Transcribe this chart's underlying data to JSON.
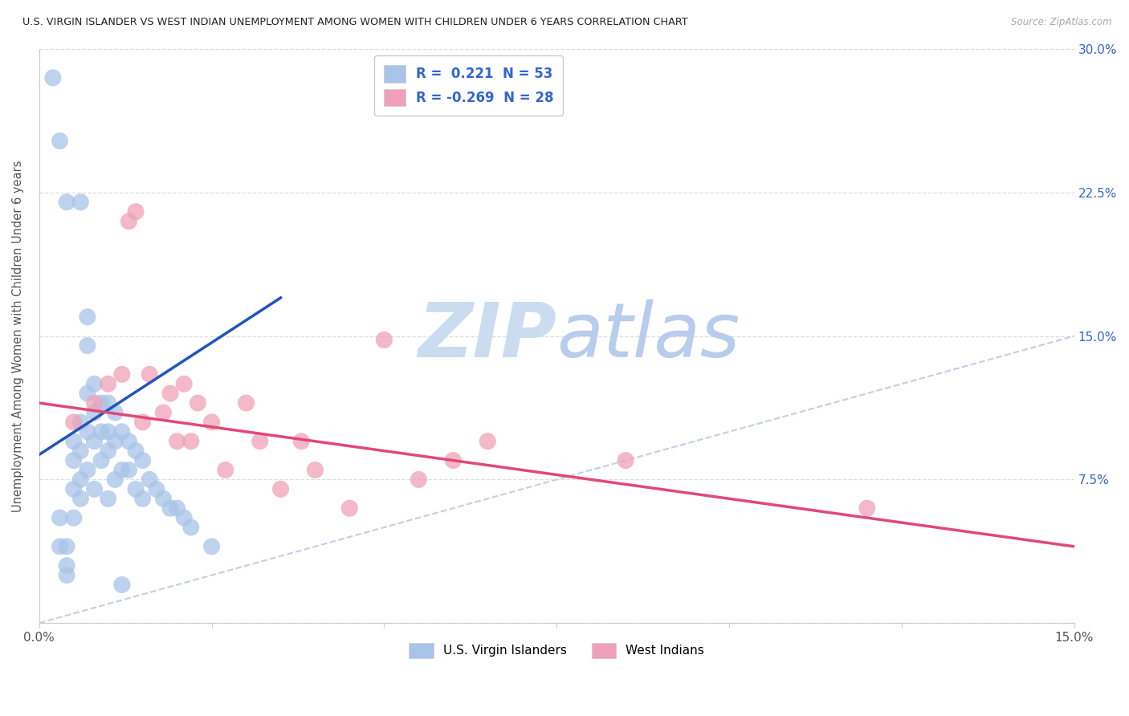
{
  "title": "U.S. VIRGIN ISLANDER VS WEST INDIAN UNEMPLOYMENT AMONG WOMEN WITH CHILDREN UNDER 6 YEARS CORRELATION CHART",
  "source": "Source: ZipAtlas.com",
  "ylabel": "Unemployment Among Women with Children Under 6 years",
  "xlim": [
    0,
    0.15
  ],
  "ylim": [
    0,
    0.3
  ],
  "xticks": [
    0.0,
    0.025,
    0.05,
    0.075,
    0.1,
    0.125,
    0.15
  ],
  "yticks": [
    0.0,
    0.075,
    0.15,
    0.225,
    0.3
  ],
  "xtick_labels": [
    "0.0%",
    "",
    "",
    "",
    "",
    "",
    "15.0%"
  ],
  "ytick_labels": [
    "",
    "7.5%",
    "15.0%",
    "22.5%",
    "30.0%"
  ],
  "right_ytick_labels": [
    "",
    "7.5%",
    "15.0%",
    "22.5%",
    "30.0%"
  ],
  "blue_color": "#a8c4e8",
  "blue_line_color": "#2255bb",
  "pink_color": "#f0a0b8",
  "pink_line_color": "#e04878",
  "diag_color": "#b8c8e0",
  "watermark_zip_color": "#ccdcf0",
  "watermark_atlas_color": "#b8ccec",
  "grid_color": "#dddddd",
  "title_color": "#222222",
  "source_color": "#aaaaaa",
  "right_tick_color": "#3366cc",
  "blue_x": [
    0.002,
    0.003,
    0.003,
    0.004,
    0.004,
    0.004,
    0.005,
    0.005,
    0.005,
    0.005,
    0.006,
    0.006,
    0.006,
    0.006,
    0.006,
    0.007,
    0.007,
    0.007,
    0.007,
    0.007,
    0.008,
    0.008,
    0.008,
    0.008,
    0.009,
    0.009,
    0.009,
    0.01,
    0.01,
    0.01,
    0.01,
    0.011,
    0.011,
    0.011,
    0.012,
    0.012,
    0.013,
    0.013,
    0.014,
    0.014,
    0.015,
    0.015,
    0.016,
    0.017,
    0.018,
    0.019,
    0.02,
    0.021,
    0.022,
    0.025,
    0.003,
    0.004,
    0.012
  ],
  "blue_y": [
    0.285,
    0.252,
    0.055,
    0.22,
    0.04,
    0.025,
    0.095,
    0.085,
    0.07,
    0.055,
    0.22,
    0.105,
    0.09,
    0.075,
    0.065,
    0.16,
    0.145,
    0.12,
    0.1,
    0.08,
    0.125,
    0.11,
    0.095,
    0.07,
    0.115,
    0.1,
    0.085,
    0.115,
    0.1,
    0.09,
    0.065,
    0.11,
    0.095,
    0.075,
    0.1,
    0.08,
    0.095,
    0.08,
    0.09,
    0.07,
    0.085,
    0.065,
    0.075,
    0.07,
    0.065,
    0.06,
    0.06,
    0.055,
    0.05,
    0.04,
    0.04,
    0.03,
    0.02
  ],
  "pink_x": [
    0.005,
    0.008,
    0.01,
    0.012,
    0.013,
    0.014,
    0.015,
    0.016,
    0.018,
    0.019,
    0.02,
    0.021,
    0.022,
    0.023,
    0.025,
    0.027,
    0.03,
    0.032,
    0.035,
    0.038,
    0.04,
    0.045,
    0.05,
    0.055,
    0.06,
    0.065,
    0.085,
    0.12
  ],
  "pink_y": [
    0.105,
    0.115,
    0.125,
    0.13,
    0.21,
    0.215,
    0.105,
    0.13,
    0.11,
    0.12,
    0.095,
    0.125,
    0.095,
    0.115,
    0.105,
    0.08,
    0.115,
    0.095,
    0.07,
    0.095,
    0.08,
    0.06,
    0.148,
    0.075,
    0.085,
    0.095,
    0.085,
    0.06
  ],
  "blue_trend_x": [
    0.0,
    0.035
  ],
  "blue_trend_y": [
    0.088,
    0.17
  ],
  "pink_trend_x": [
    0.0,
    0.15
  ],
  "pink_trend_y": [
    0.115,
    0.04
  ]
}
